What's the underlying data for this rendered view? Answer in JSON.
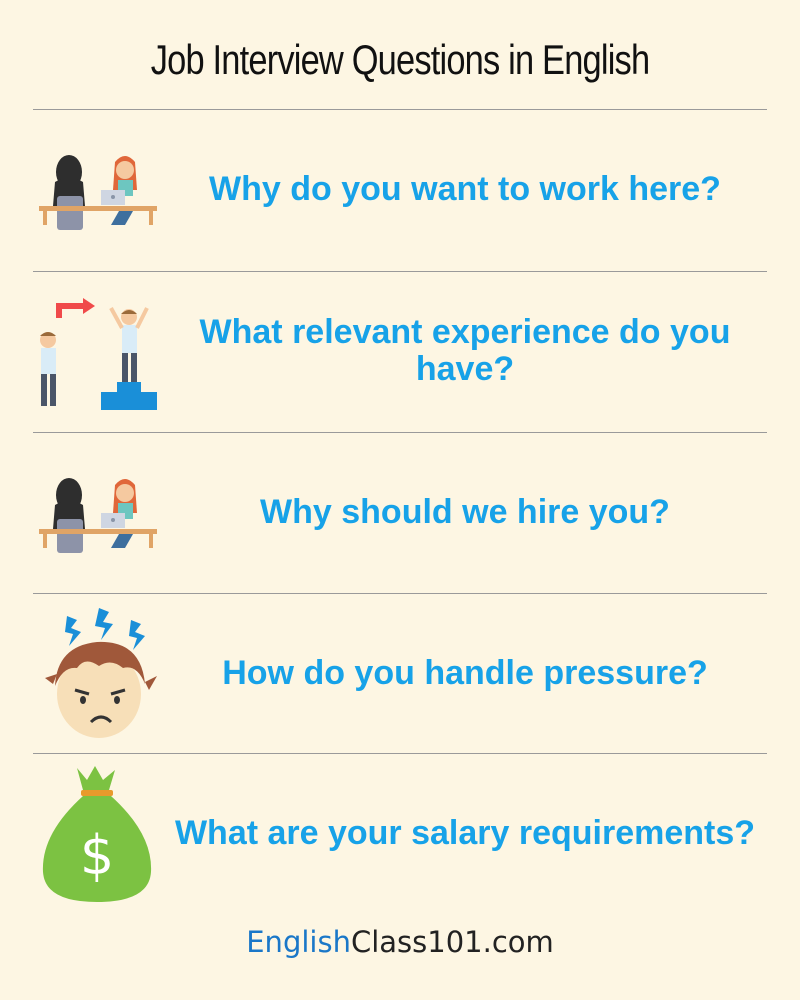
{
  "title": "Job Interview Questions in English",
  "questions": [
    {
      "text": "Why do you want to work here?",
      "icon": "interview-desk-icon"
    },
    {
      "text": "What relevant experience do you have?",
      "icon": "promotion-icon"
    },
    {
      "text": "Why should we hire you?",
      "icon": "interview-desk-icon"
    },
    {
      "text": "How do you handle pressure?",
      "icon": "stressed-face-icon"
    },
    {
      "text": "What are your salary requirements?",
      "icon": "money-bag-icon"
    }
  ],
  "footer": {
    "brand_part1": "English",
    "brand_part2": "Class101.com"
  },
  "colors": {
    "background": "#fdf6e3",
    "question_text": "#17a2e8",
    "divider": "#9a9a9a",
    "brand_blue": "#1a77c8"
  }
}
